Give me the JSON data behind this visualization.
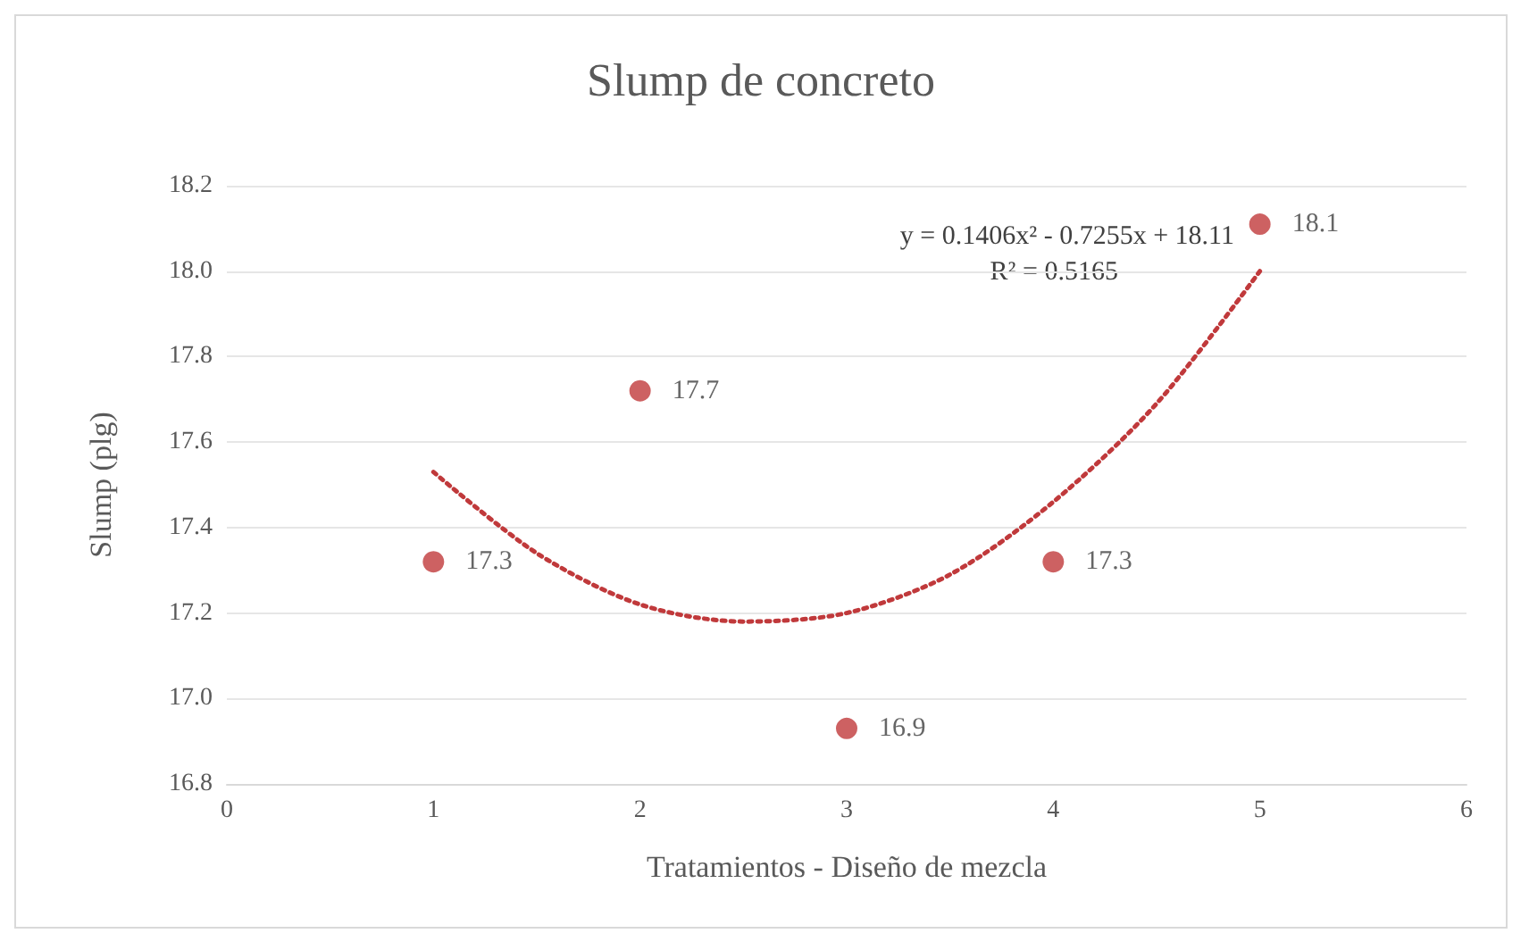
{
  "chart_data": {
    "type": "scatter",
    "title": "Slump de concreto",
    "xlabel": "Tratamientos - Diseño de mezcla",
    "ylabel": "Slump (plg)",
    "xlim": [
      0,
      6
    ],
    "xticks": [
      0,
      1,
      2,
      3,
      4,
      5,
      6
    ],
    "ylim": [
      16.8,
      18.2
    ],
    "yticks": [
      16.8,
      {
        "value": 17,
        "label": "17.0"
      },
      17.2,
      17.4,
      17.6,
      17.8,
      {
        "value": 18,
        "label": "18.0"
      },
      18.2
    ],
    "grid": "y",
    "marker": "circle",
    "series": [
      {
        "type": "scatter",
        "color": "#c0393b",
        "x": [
          1,
          2,
          3,
          4,
          5
        ],
        "values": [
          17.32,
          17.72,
          16.93,
          17.32,
          18.11
        ],
        "value_labels": [
          "17.3",
          "17.7",
          "16.9",
          "17.3",
          "18.1"
        ]
      },
      {
        "type": "line",
        "color": "#c0393b",
        "marker": "none",
        "line_style": "dotted",
        "x": [
          1,
          1.5,
          2,
          2.5,
          3,
          3.5,
          4,
          4.5,
          5
        ],
        "values": [
          17.53,
          17.34,
          17.22,
          17.18,
          17.2,
          17.29,
          17.46,
          17.69,
          18.0
        ]
      }
    ],
    "annotations": [
      "y = 0.1406x² - 0.7255x + 18.11",
      "R² = 0.5165"
    ]
  }
}
